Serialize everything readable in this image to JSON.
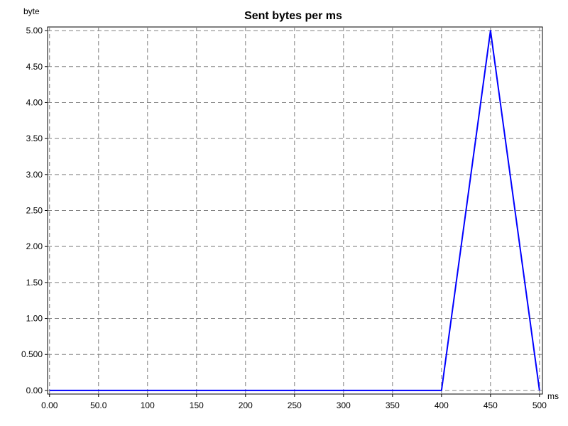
{
  "chart_data": {
    "type": "line",
    "title": "Sent bytes per ms",
    "xlabel": "ms",
    "ylabel": "byte",
    "xlim": [
      -2,
      503
    ],
    "ylim": [
      -0.05,
      5.05
    ],
    "grid": true,
    "x_ticks": [
      {
        "value": 0,
        "label": "0.00"
      },
      {
        "value": 50,
        "label": "50.0"
      },
      {
        "value": 100,
        "label": "100"
      },
      {
        "value": 150,
        "label": "150"
      },
      {
        "value": 200,
        "label": "200"
      },
      {
        "value": 250,
        "label": "250"
      },
      {
        "value": 300,
        "label": "300"
      },
      {
        "value": 350,
        "label": "350"
      },
      {
        "value": 400,
        "label": "400"
      },
      {
        "value": 450,
        "label": "450"
      },
      {
        "value": 500,
        "label": "500"
      }
    ],
    "y_ticks": [
      {
        "value": 0,
        "label": "0.00"
      },
      {
        "value": 0.5,
        "label": "0.500"
      },
      {
        "value": 1.0,
        "label": "1.00"
      },
      {
        "value": 1.5,
        "label": "1.50"
      },
      {
        "value": 2.0,
        "label": "2.00"
      },
      {
        "value": 2.5,
        "label": "2.50"
      },
      {
        "value": 3.0,
        "label": "3.00"
      },
      {
        "value": 3.5,
        "label": "3.50"
      },
      {
        "value": 4.0,
        "label": "4.00"
      },
      {
        "value": 4.5,
        "label": "4.50"
      },
      {
        "value": 5.0,
        "label": "5.00"
      }
    ],
    "series": [
      {
        "color": "#0000ff",
        "x": [
          0,
          400,
          450,
          500
        ],
        "y": [
          0,
          0,
          5,
          0
        ]
      }
    ]
  }
}
